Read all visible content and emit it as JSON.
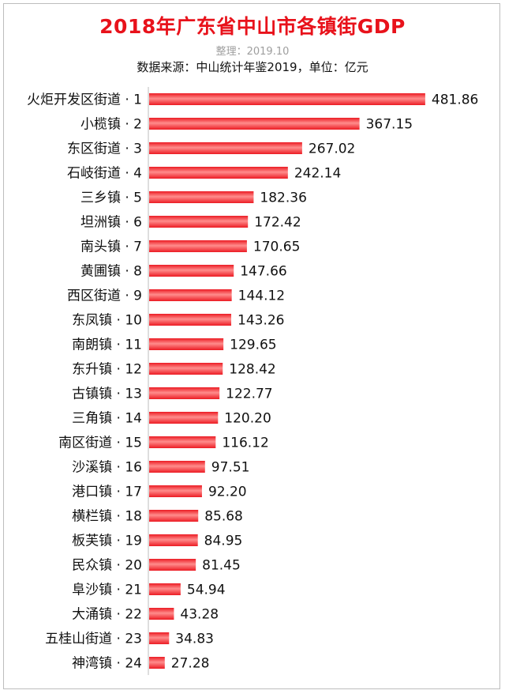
{
  "title": "2018年广东省中山市各镇街GDP",
  "subtitle": "整理：2019.10",
  "source": "数据来源：中山统计年鉴2019，单位：亿元",
  "colors": {
    "bar": "#ec1c24",
    "bar_highlight": "#ff8c8c",
    "title": "#e8121b",
    "axis": "#bdbdbd"
  },
  "chart_data": {
    "type": "bar",
    "orientation": "horizontal",
    "categories": [
      "火炬开发区街道 · 1",
      "小榄镇 · 2",
      "东区街道 · 3",
      "石岐街道 · 4",
      "三乡镇 · 5",
      "坦洲镇 · 6",
      "南头镇 · 7",
      "黄圃镇 · 8",
      "西区街道 · 9",
      "东凤镇 · 10",
      "南朗镇 · 11",
      "东升镇 · 12",
      "古镇镇 · 13",
      "三角镇 · 14",
      "南区街道 · 15",
      "沙溪镇 · 16",
      "港口镇 · 17",
      "横栏镇 · 18",
      "板芙镇 · 19",
      "民众镇 · 20",
      "阜沙镇 · 21",
      "大涌镇 · 22",
      "五桂山街道 · 23",
      "神湾镇 · 24"
    ],
    "values": [
      481.86,
      367.15,
      267.02,
      242.14,
      182.36,
      172.42,
      170.65,
      147.66,
      144.12,
      143.26,
      129.65,
      128.42,
      122.77,
      120.2,
      116.12,
      97.51,
      92.2,
      85.68,
      84.95,
      81.45,
      54.94,
      43.28,
      34.83,
      27.28
    ],
    "value_labels": [
      "481.86",
      "367.15",
      "267.02",
      "242.14",
      "182.36",
      "172.42",
      "170.65",
      "147.66",
      "144.12",
      "143.26",
      "129.65",
      "128.42",
      "122.77",
      "120.20",
      "116.12",
      "97.51",
      "92.20",
      "85.68",
      "84.95",
      "81.45",
      "54.94",
      "43.28",
      "34.83",
      "27.28"
    ],
    "title": "2018年广东省中山市各镇街GDP",
    "xlabel": "",
    "ylabel": "",
    "xlim": [
      0,
      482
    ],
    "grid": false,
    "legend": "none"
  }
}
